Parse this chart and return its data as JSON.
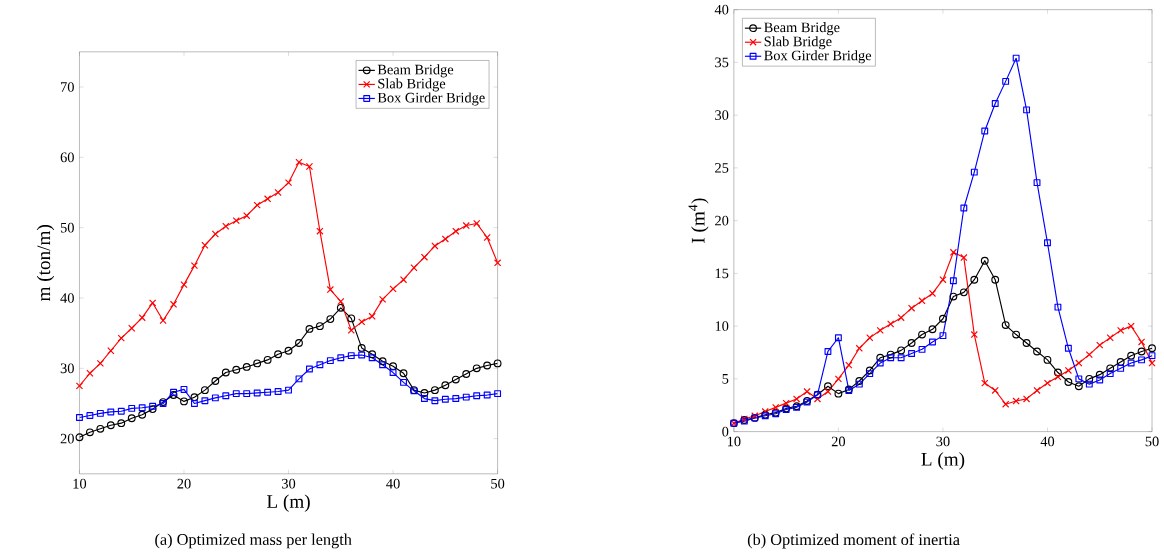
{
  "chart_data": [
    {
      "type": "line",
      "subtitle": "(a) Optimized mass per length",
      "xlabel": "L (m)",
      "ylabel": "m (ton/m)",
      "xlim": [
        10,
        50
      ],
      "ylim": [
        15,
        75
      ],
      "xticks": [
        10,
        20,
        30,
        40,
        50
      ],
      "yticks": [
        20,
        30,
        40,
        50,
        60,
        70
      ],
      "legend": "top right",
      "line_style": "solid",
      "x": [
        10,
        11,
        12,
        13,
        14,
        15,
        16,
        17,
        18,
        19,
        20,
        21,
        22,
        23,
        24,
        25,
        26,
        27,
        28,
        29,
        30,
        31,
        32,
        33,
        34,
        35,
        36,
        37,
        38,
        39,
        40,
        41,
        42,
        43,
        44,
        45,
        46,
        47,
        48,
        49,
        50
      ],
      "series": [
        {
          "name": "Beam Bridge",
          "color": "#000000",
          "marker": "circle",
          "values": [
            20.2,
            20.9,
            21.4,
            21.9,
            22.2,
            22.9,
            23.4,
            24.2,
            25.2,
            26.2,
            25.3,
            25.9,
            26.9,
            28.2,
            29.4,
            29.8,
            30.2,
            30.7,
            31.2,
            32.0,
            32.5,
            33.6,
            35.6,
            36.0,
            37.0,
            38.6,
            37.1,
            32.9,
            32.0,
            31.0,
            30.3,
            29.3,
            26.9,
            26.5,
            26.9,
            27.6,
            28.4,
            29.2,
            30.0,
            30.4,
            30.7
          ]
        },
        {
          "name": "Slab Bridge",
          "color": "#ff0000",
          "marker": "cross",
          "values": [
            27.5,
            29.3,
            30.7,
            32.5,
            34.3,
            35.7,
            37.2,
            39.3,
            36.8,
            39.1,
            41.9,
            44.6,
            47.5,
            49.1,
            50.2,
            51.0,
            51.7,
            53.2,
            54.1,
            55.0,
            56.4,
            59.3,
            58.7,
            49.5,
            41.2,
            39.5,
            35.4,
            36.6,
            37.4,
            39.8,
            41.3,
            42.6,
            44.3,
            45.8,
            47.4,
            48.4,
            49.5,
            50.3,
            50.6,
            48.6,
            45.0
          ]
        },
        {
          "name": "Box Girder Bridge",
          "color": "#0000ff",
          "marker": "square",
          "values": [
            23.0,
            23.3,
            23.6,
            23.8,
            23.9,
            24.3,
            24.4,
            24.6,
            25.0,
            26.6,
            27.0,
            25.0,
            25.4,
            25.8,
            26.1,
            26.4,
            26.4,
            26.5,
            26.6,
            26.7,
            26.9,
            28.5,
            29.9,
            30.5,
            31.1,
            31.5,
            31.8,
            31.9,
            31.5,
            30.5,
            29.4,
            28.0,
            26.8,
            25.7,
            25.4,
            25.6,
            25.7,
            25.9,
            26.1,
            26.2,
            26.4
          ]
        }
      ]
    },
    {
      "type": "line",
      "subtitle": "(b) Optimized moment of inertia",
      "xlabel": "L (m)",
      "ylabel": "I (m$^{4}$)",
      "xlim": [
        10,
        50
      ],
      "ylim": [
        0,
        40
      ],
      "xticks": [
        10,
        20,
        30,
        40,
        50
      ],
      "yticks": [
        0,
        5,
        10,
        15,
        20,
        25,
        30,
        35,
        40
      ],
      "legend": "top left",
      "line_style": "solid",
      "x": [
        10,
        11,
        12,
        13,
        14,
        15,
        16,
        17,
        18,
        19,
        20,
        21,
        22,
        23,
        24,
        25,
        26,
        27,
        28,
        29,
        30,
        31,
        32,
        33,
        34,
        35,
        36,
        37,
        38,
        39,
        40,
        41,
        42,
        43,
        44,
        45,
        46,
        47,
        48,
        49,
        50
      ],
      "series": [
        {
          "name": "Beam Bridge",
          "color": "#000000",
          "marker": "circle",
          "values": [
            0.8,
            1.1,
            1.3,
            1.6,
            1.8,
            2.2,
            2.4,
            2.9,
            3.5,
            4.3,
            3.6,
            4.0,
            4.8,
            5.8,
            7.0,
            7.3,
            7.7,
            8.4,
            9.2,
            9.7,
            10.7,
            12.8,
            13.2,
            14.4,
            16.2,
            14.4,
            10.1,
            9.2,
            8.4,
            7.6,
            6.8,
            5.6,
            4.7,
            4.3,
            5.0,
            5.4,
            6.0,
            6.6,
            7.2,
            7.6,
            7.9
          ]
        },
        {
          "name": "Slab Bridge",
          "color": "#ff0000",
          "marker": "cross",
          "values": [
            0.8,
            1.2,
            1.5,
            1.9,
            2.3,
            2.7,
            3.1,
            3.8,
            3.1,
            3.8,
            5.0,
            6.3,
            7.9,
            8.9,
            9.6,
            10.2,
            10.8,
            11.7,
            12.4,
            13.1,
            14.4,
            17.0,
            16.5,
            9.2,
            4.6,
            3.9,
            2.6,
            2.9,
            3.1,
            3.9,
            4.6,
            5.2,
            5.8,
            6.5,
            7.3,
            8.2,
            8.9,
            9.6,
            10.0,
            8.5,
            6.5
          ]
        },
        {
          "name": "Box Girder Bridge",
          "color": "#0000ff",
          "marker": "square",
          "values": [
            0.8,
            1.0,
            1.3,
            1.5,
            1.7,
            2.1,
            2.3,
            2.8,
            3.5,
            7.6,
            8.9,
            3.9,
            4.5,
            5.5,
            6.5,
            7.0,
            7.0,
            7.4,
            7.8,
            8.5,
            9.1,
            14.3,
            21.2,
            24.6,
            28.5,
            31.1,
            33.2,
            35.4,
            30.5,
            23.6,
            17.9,
            11.8,
            7.9,
            5.0,
            4.5,
            4.9,
            5.5,
            6.0,
            6.5,
            6.8,
            7.2
          ]
        }
      ]
    }
  ]
}
